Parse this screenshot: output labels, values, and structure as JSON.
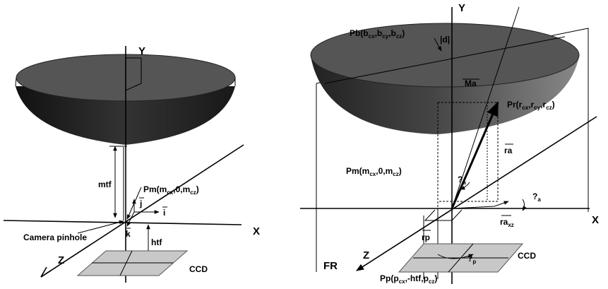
{
  "left": {
    "axes": {
      "y": "Y",
      "x": "X",
      "z": "Z"
    },
    "labels": {
      "mtf": "mtf",
      "pm": [
        "Pm(m",
        "cx",
        ",0,m",
        "cz",
        ")"
      ],
      "j": "j",
      "i": "i",
      "k": "k",
      "pinhole": "Camera pinhole",
      "htf": "htf",
      "ccd": "CCD"
    }
  },
  "right": {
    "axes": {
      "y": "Y",
      "x": "X",
      "z": "Z"
    },
    "labels": {
      "fr": "FR",
      "pb": [
        "Pb(b",
        "cx",
        ",b",
        "cy",
        ",b",
        "cz",
        ")"
      ],
      "d": "|d|",
      "ma": "Ma",
      "pr": [
        "Pr(r",
        "cx",
        ",r",
        "cy",
        ",r",
        "cz",
        ")"
      ],
      "ra": "ra",
      "theta_a1": [
        "?",
        "a"
      ],
      "pm": [
        "Pm(m",
        "cx",
        ",0,m",
        "cz",
        ")"
      ],
      "theta_a2": [
        "?",
        "a"
      ],
      "ra_xz": [
        "ra",
        "xz"
      ],
      "rp": "rp",
      "theta_p": [
        "?",
        "p"
      ],
      "ccd": "CCD",
      "pp": [
        "Pp(p",
        "cx",
        ",-htf,p",
        "cz",
        ")"
      ]
    }
  }
}
